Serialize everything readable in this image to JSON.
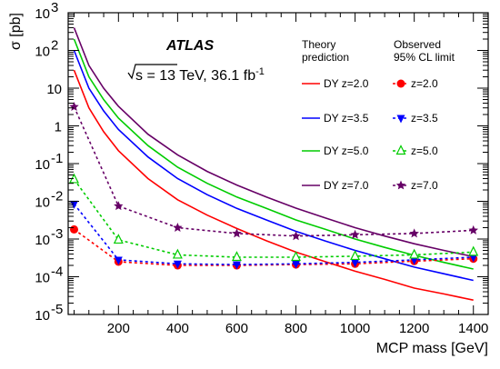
{
  "chart_data": {
    "type": "line",
    "yscale": "log",
    "xlabel": "MCP mass [GeV]",
    "ylabel": "σ [pb]",
    "xlim": [
      30,
      1450
    ],
    "ylim": [
      1e-05,
      1000.0
    ],
    "x_ticks": [
      200,
      400,
      600,
      800,
      1000,
      1200,
      1400
    ],
    "x_tick_labels": [
      "200",
      "400",
      "600",
      "800",
      "1000",
      "1200",
      "1400"
    ],
    "y_ticks": [
      1e-05,
      0.0001,
      0.001,
      0.01,
      0.1,
      1,
      10,
      100,
      1000
    ],
    "y_tick_labels": [
      {
        "base": "10",
        "exp": "-5"
      },
      {
        "base": "10",
        "exp": "-4"
      },
      {
        "base": "10",
        "exp": "-3"
      },
      {
        "base": "10",
        "exp": "-2"
      },
      {
        "base": "10",
        "exp": "-1"
      },
      {
        "base": "1",
        "exp": ""
      },
      {
        "base": "10",
        "exp": ""
      },
      {
        "base": "10",
        "exp": "2"
      },
      {
        "base": "10",
        "exp": "3"
      }
    ],
    "annotations": {
      "experiment": "ATLAS",
      "energy_prefix": "s = 13 TeV, 36.1 fb",
      "energy_exp": "-1"
    },
    "legend": {
      "theory_header_line1": "Theory",
      "theory_header_line2": "prediction",
      "observed_header_line1": "Observed",
      "observed_header_line2": "95% CL limit"
    },
    "theory_series": [
      {
        "name": "DY z=2.0",
        "color": "#ff0000",
        "x": [
          50,
          100,
          150,
          200,
          300,
          400,
          500,
          600,
          700,
          800,
          900,
          1000,
          1100,
          1200,
          1300,
          1400
        ],
        "y": [
          30,
          3,
          0.7,
          0.22,
          0.04,
          0.011,
          0.0043,
          0.0019,
          0.0009,
          0.00045,
          0.00025,
          0.00014,
          8.5e-05,
          5e-05,
          3.5e-05,
          2.4e-05
        ]
      },
      {
        "name": "DY z=3.5",
        "color": "#0000ff",
        "x": [
          50,
          100,
          150,
          200,
          300,
          400,
          500,
          600,
          700,
          800,
          900,
          1000,
          1100,
          1200,
          1300,
          1400
        ],
        "y": [
          100,
          10,
          2.5,
          0.8,
          0.15,
          0.04,
          0.015,
          0.0065,
          0.0032,
          0.0016,
          0.00088,
          0.0005,
          0.0003,
          0.00018,
          0.00012,
          8e-05
        ]
      },
      {
        "name": "DY z=5.0",
        "color": "#00cc00",
        "x": [
          50,
          100,
          150,
          200,
          300,
          400,
          500,
          600,
          700,
          800,
          900,
          1000,
          1100,
          1200,
          1300,
          1400
        ],
        "y": [
          200,
          20,
          5,
          1.6,
          0.3,
          0.08,
          0.03,
          0.013,
          0.0065,
          0.0032,
          0.0018,
          0.001,
          0.0006,
          0.00037,
          0.00024,
          0.00016
        ]
      },
      {
        "name": "DY z=7.0",
        "color": "#660066",
        "x": [
          50,
          100,
          150,
          200,
          300,
          400,
          500,
          600,
          700,
          800,
          900,
          1000,
          1100,
          1200,
          1300,
          1400
        ],
        "y": [
          400,
          40,
          10,
          3.3,
          0.6,
          0.17,
          0.062,
          0.027,
          0.013,
          0.0066,
          0.0036,
          0.002,
          0.0012,
          0.00075,
          0.0005,
          0.00034
        ]
      }
    ],
    "observed_series": [
      {
        "name": "z=2.0",
        "color": "#ff0000",
        "marker": "circle",
        "x": [
          50,
          200,
          400,
          600,
          800,
          1000,
          1200,
          1400
        ],
        "y": [
          0.0018,
          0.00025,
          0.0002,
          0.0002,
          0.00021,
          0.00022,
          0.00026,
          0.0003
        ]
      },
      {
        "name": "z=3.5",
        "color": "#0000ff",
        "marker": "triangle-down",
        "x": [
          50,
          200,
          400,
          600,
          800,
          1000,
          1200,
          1400
        ],
        "y": [
          0.0085,
          0.00028,
          0.00022,
          0.00021,
          0.00022,
          0.00024,
          0.00028,
          0.00033
        ]
      },
      {
        "name": "z=5.0",
        "color": "#00cc00",
        "marker": "triangle-open",
        "x": [
          50,
          200,
          400,
          600,
          800,
          1000,
          1200,
          1400
        ],
        "y": [
          0.038,
          0.00095,
          0.00038,
          0.00033,
          0.00033,
          0.00035,
          0.00038,
          0.00045
        ]
      },
      {
        "name": "z=7.0",
        "color": "#660066",
        "marker": "star",
        "x": [
          50,
          200,
          400,
          600,
          800,
          1000,
          1200,
          1400
        ],
        "y": [
          3.2,
          0.0075,
          0.002,
          0.0014,
          0.0012,
          0.0013,
          0.0014,
          0.0017
        ]
      }
    ],
    "grid": false,
    "legend_placement": "top-right"
  }
}
